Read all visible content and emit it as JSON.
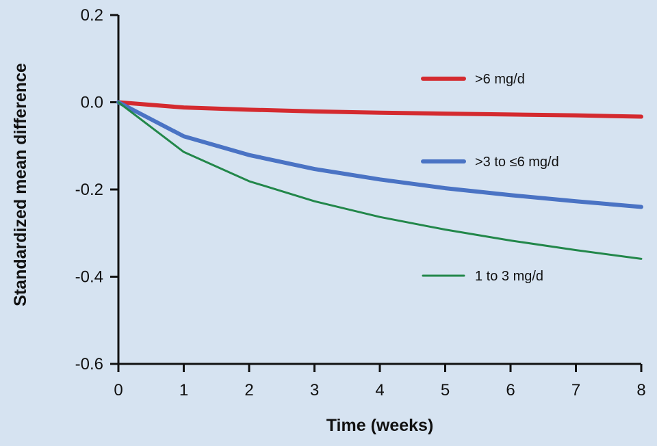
{
  "chart_data": {
    "type": "line",
    "title": "",
    "xlabel": "Time (weeks)",
    "ylabel": "Standardized mean difference",
    "xlim": [
      0,
      8
    ],
    "ylim": [
      -0.6,
      0.2
    ],
    "x_ticks": [
      0,
      1,
      2,
      3,
      4,
      5,
      6,
      7,
      8
    ],
    "x_tick_labels": [
      "0",
      "1",
      "2",
      "3",
      "4",
      "5",
      "6",
      "7",
      "8"
    ],
    "y_ticks": [
      0.2,
      0.0,
      -0.2,
      -0.4,
      -0.6
    ],
    "y_tick_labels": [
      "0.2",
      "0.0",
      "-0.2",
      "-0.4",
      "-0.6"
    ],
    "grid": false,
    "legend_position": "right",
    "x": [
      0,
      1,
      2,
      3,
      4,
      5,
      6,
      7,
      8
    ],
    "series": [
      {
        "name": ">6 mg/d",
        "color": "#d42a2f",
        "line_weight": "thick",
        "values": [
          0.0,
          -0.012,
          -0.017,
          -0.021,
          -0.024,
          -0.026,
          -0.028,
          -0.03,
          -0.033
        ]
      },
      {
        "name": ">3 to ≤6 mg/d",
        "color": "#4a73c4",
        "line_weight": "thick",
        "values": [
          0.0,
          -0.078,
          -0.121,
          -0.153,
          -0.177,
          -0.197,
          -0.213,
          -0.227,
          -0.24
        ]
      },
      {
        "name": "1 to 3 mg/d",
        "color": "#22874a",
        "line_weight": "thin",
        "values": [
          0.0,
          -0.114,
          -0.181,
          -0.227,
          -0.263,
          -0.292,
          -0.317,
          -0.339,
          -0.359
        ]
      }
    ]
  }
}
